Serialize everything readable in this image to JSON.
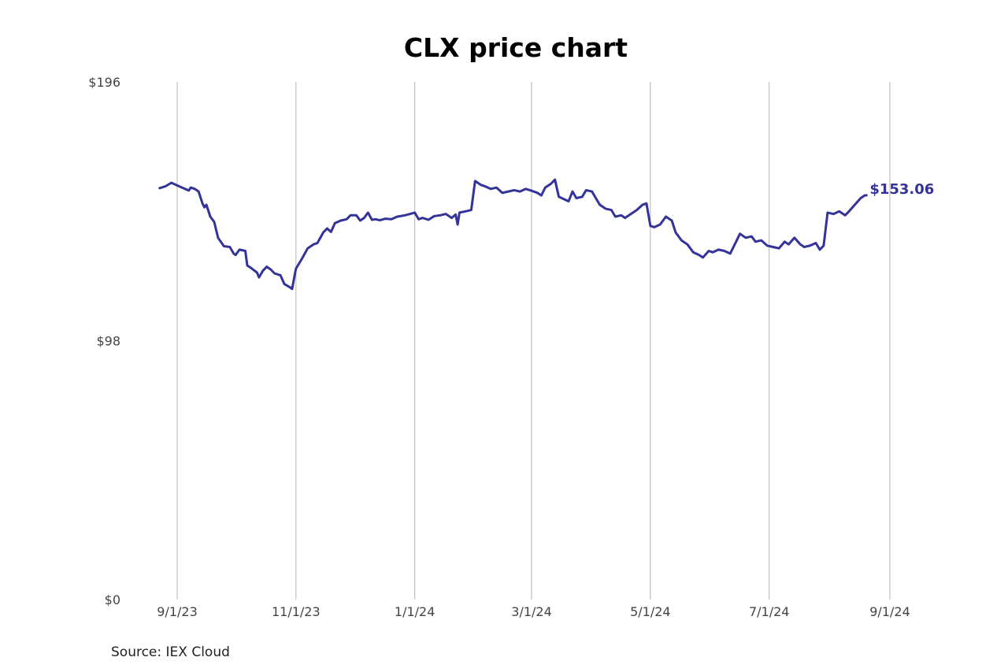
{
  "chart_data": {
    "type": "line",
    "title": "CLX price chart",
    "source": "Source: IEX Cloud",
    "line_color": "#333399",
    "grid": true,
    "y_ticks": [
      {
        "value": 196,
        "label": "$196"
      },
      {
        "value": 98,
        "label": "$98"
      },
      {
        "value": 0,
        "label": "$0"
      }
    ],
    "ylim": [
      0,
      196
    ],
    "x_ticks": [
      {
        "date": "2023-09-01",
        "label": "9/1/23"
      },
      {
        "date": "2023-11-01",
        "label": "11/1/23"
      },
      {
        "date": "2024-01-01",
        "label": "1/1/24"
      },
      {
        "date": "2024-03-01",
        "label": "3/1/24"
      },
      {
        "date": "2024-05-01",
        "label": "5/1/24"
      },
      {
        "date": "2024-07-01",
        "label": "7/1/24"
      },
      {
        "date": "2024-09-01",
        "label": "9/1/24"
      }
    ],
    "xlim": [
      "2023-08-22",
      "2024-09-01"
    ],
    "last_value_label": "$153.06",
    "series": [
      {
        "points": [
          [
            "2023-08-23",
            155.8
          ],
          [
            "2023-08-26",
            156.5
          ],
          [
            "2023-08-29",
            157.8
          ],
          [
            "2023-09-01",
            156.8
          ],
          [
            "2023-09-05",
            155.5
          ],
          [
            "2023-09-07",
            154.9
          ],
          [
            "2023-09-08",
            156.0
          ],
          [
            "2023-09-10",
            155.5
          ],
          [
            "2023-09-12",
            154.5
          ],
          [
            "2023-09-14",
            150.0
          ],
          [
            "2023-09-15",
            148.5
          ],
          [
            "2023-09-16",
            149.5
          ],
          [
            "2023-09-18",
            145.0
          ],
          [
            "2023-09-20",
            143.0
          ],
          [
            "2023-09-22",
            137.0
          ],
          [
            "2023-09-25",
            133.8
          ],
          [
            "2023-09-28",
            133.5
          ],
          [
            "2023-09-30",
            131.0
          ],
          [
            "2023-10-01",
            130.5
          ],
          [
            "2023-10-03",
            132.5
          ],
          [
            "2023-10-06",
            132.0
          ],
          [
            "2023-10-07",
            126.5
          ],
          [
            "2023-10-09",
            125.5
          ],
          [
            "2023-10-12",
            123.8
          ],
          [
            "2023-10-13",
            122.0
          ],
          [
            "2023-10-15",
            124.5
          ],
          [
            "2023-10-17",
            126.0
          ],
          [
            "2023-10-19",
            125.0
          ],
          [
            "2023-10-21",
            123.5
          ],
          [
            "2023-10-24",
            122.8
          ],
          [
            "2023-10-26",
            119.5
          ],
          [
            "2023-10-29",
            118.2
          ],
          [
            "2023-10-30",
            117.6
          ],
          [
            "2023-11-01",
            125.3
          ],
          [
            "2023-11-04",
            129.0
          ],
          [
            "2023-11-07",
            133.0
          ],
          [
            "2023-11-10",
            134.5
          ],
          [
            "2023-11-12",
            135.0
          ],
          [
            "2023-11-15",
            139.0
          ],
          [
            "2023-11-17",
            140.5
          ],
          [
            "2023-11-19",
            139.2
          ],
          [
            "2023-11-21",
            142.5
          ],
          [
            "2023-11-24",
            143.5
          ],
          [
            "2023-11-27",
            144.0
          ],
          [
            "2023-11-29",
            145.5
          ],
          [
            "2023-12-02",
            145.5
          ],
          [
            "2023-12-04",
            143.5
          ],
          [
            "2023-12-06",
            144.5
          ],
          [
            "2023-12-08",
            146.5
          ],
          [
            "2023-12-10",
            143.8
          ],
          [
            "2023-12-12",
            144.0
          ],
          [
            "2023-12-14",
            143.6
          ],
          [
            "2023-12-17",
            144.2
          ],
          [
            "2023-12-20",
            144.0
          ],
          [
            "2023-12-23",
            145.0
          ],
          [
            "2023-12-27",
            145.5
          ],
          [
            "2024-01-01",
            146.5
          ],
          [
            "2024-01-03",
            144.0
          ],
          [
            "2024-01-05",
            144.5
          ],
          [
            "2024-01-08",
            143.8
          ],
          [
            "2024-01-11",
            145.2
          ],
          [
            "2024-01-14",
            145.5
          ],
          [
            "2024-01-17",
            146.0
          ],
          [
            "2024-01-20",
            144.5
          ],
          [
            "2024-01-22",
            145.8
          ],
          [
            "2024-01-23",
            142.0
          ],
          [
            "2024-01-24",
            146.5
          ],
          [
            "2024-01-27",
            147.0
          ],
          [
            "2024-01-30",
            147.5
          ],
          [
            "2024-02-01",
            158.5
          ],
          [
            "2024-02-04",
            157.0
          ],
          [
            "2024-02-06",
            156.5
          ],
          [
            "2024-02-09",
            155.5
          ],
          [
            "2024-02-12",
            156.0
          ],
          [
            "2024-02-15",
            154.0
          ],
          [
            "2024-02-18",
            154.5
          ],
          [
            "2024-02-21",
            155.0
          ],
          [
            "2024-02-24",
            154.5
          ],
          [
            "2024-02-27",
            155.5
          ],
          [
            "2024-03-01",
            154.8
          ],
          [
            "2024-03-04",
            154.0
          ],
          [
            "2024-03-06",
            153.0
          ],
          [
            "2024-03-08",
            156.0
          ],
          [
            "2024-03-11",
            157.5
          ],
          [
            "2024-03-13",
            159.0
          ],
          [
            "2024-03-15",
            152.5
          ],
          [
            "2024-03-18",
            151.5
          ],
          [
            "2024-03-20",
            150.8
          ],
          [
            "2024-03-22",
            154.5
          ],
          [
            "2024-03-24",
            152.0
          ],
          [
            "2024-03-27",
            152.5
          ],
          [
            "2024-03-29",
            155.0
          ],
          [
            "2024-04-01",
            154.5
          ],
          [
            "2024-04-03",
            152.0
          ],
          [
            "2024-04-05",
            149.5
          ],
          [
            "2024-04-08",
            148.0
          ],
          [
            "2024-04-11",
            147.5
          ],
          [
            "2024-04-13",
            145.0
          ],
          [
            "2024-04-16",
            145.5
          ],
          [
            "2024-04-18",
            144.5
          ],
          [
            "2024-04-21",
            146.0
          ],
          [
            "2024-04-24",
            147.5
          ],
          [
            "2024-04-27",
            149.5
          ],
          [
            "2024-04-29",
            150.0
          ],
          [
            "2024-05-01",
            141.5
          ],
          [
            "2024-05-03",
            141.0
          ],
          [
            "2024-05-06",
            142.0
          ],
          [
            "2024-05-09",
            145.0
          ],
          [
            "2024-05-12",
            143.5
          ],
          [
            "2024-05-14",
            139.0
          ],
          [
            "2024-05-17",
            136.0
          ],
          [
            "2024-05-20",
            134.5
          ],
          [
            "2024-05-23",
            131.5
          ],
          [
            "2024-05-26",
            130.5
          ],
          [
            "2024-05-28",
            129.5
          ],
          [
            "2024-05-31",
            132.0
          ],
          [
            "2024-06-02",
            131.5
          ],
          [
            "2024-06-05",
            132.5
          ],
          [
            "2024-06-08",
            132.0
          ],
          [
            "2024-06-11",
            131.0
          ],
          [
            "2024-06-14",
            135.5
          ],
          [
            "2024-06-16",
            138.5
          ],
          [
            "2024-06-19",
            137.0
          ],
          [
            "2024-06-22",
            137.5
          ],
          [
            "2024-06-24",
            135.5
          ],
          [
            "2024-06-27",
            136.0
          ],
          [
            "2024-06-30",
            134.0
          ],
          [
            "2024-07-03",
            133.5
          ],
          [
            "2024-07-06",
            133.0
          ],
          [
            "2024-07-09",
            135.5
          ],
          [
            "2024-07-11",
            134.5
          ],
          [
            "2024-07-14",
            137.0
          ],
          [
            "2024-07-17",
            134.5
          ],
          [
            "2024-07-19",
            133.5
          ],
          [
            "2024-07-22",
            134.0
          ],
          [
            "2024-07-25",
            135.0
          ],
          [
            "2024-07-27",
            132.5
          ],
          [
            "2024-07-29",
            134.0
          ],
          [
            "2024-07-31",
            146.5
          ],
          [
            "2024-08-03",
            146.0
          ],
          [
            "2024-08-06",
            147.0
          ],
          [
            "2024-08-09",
            145.5
          ],
          [
            "2024-08-11",
            147.0
          ],
          [
            "2024-08-14",
            149.5
          ],
          [
            "2024-08-17",
            152.0
          ],
          [
            "2024-08-19",
            153.0
          ],
          [
            "2024-08-20",
            153.06
          ]
        ]
      }
    ]
  }
}
